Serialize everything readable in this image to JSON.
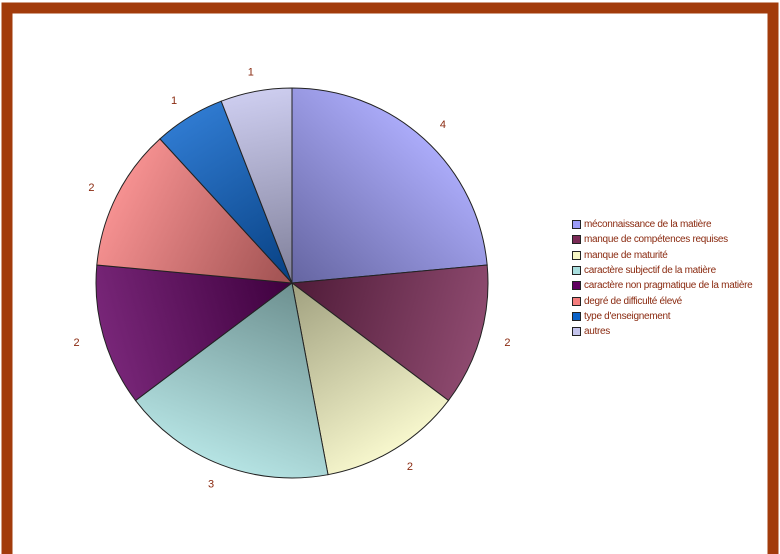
{
  "chart_data": {
    "type": "pie",
    "title": "",
    "start_angle_deg": 0,
    "direction": "clockwise",
    "categories": [
      "méconnaissance de la matière",
      "manque de compétences requises",
      "manque de maturité",
      "caractère subjectif de la matière",
      "caractère non pragmatique de la matière",
      "degré de difficulté élevé",
      "type d'enseignement",
      "autres"
    ],
    "values": [
      4,
      2,
      2,
      3,
      2,
      2,
      1,
      1
    ],
    "data_labels": [
      "4",
      "2",
      "2",
      "3",
      "2",
      "2",
      "1",
      "1"
    ],
    "colors": [
      "#9c9cf8",
      "#7a2a56",
      "#f6f6c4",
      "#a8dede",
      "#600060",
      "#f47d7d",
      "#0a62c8",
      "#c4c4ec"
    ],
    "legend_position": "right"
  },
  "style": {
    "frame_color": "#a23b0b",
    "label_color": "#8a2a10"
  }
}
